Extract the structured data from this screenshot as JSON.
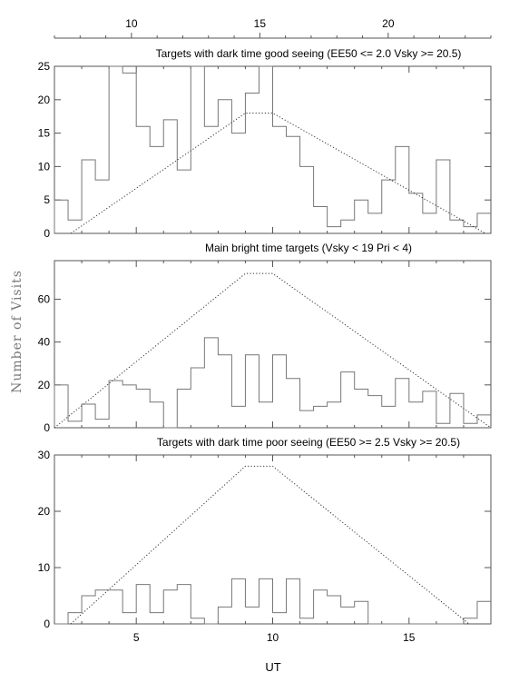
{
  "chart_data": {
    "type": "histogram-panels",
    "ylabel": "Number of Visits",
    "xlabel": "UT",
    "top_axis": {
      "ticks": [
        10,
        15,
        20
      ],
      "range": [
        7,
        24
      ]
    },
    "bottom_axis": {
      "ticks": [
        5,
        10,
        15
      ],
      "range": [
        2,
        18
      ]
    },
    "panels": [
      {
        "title": "Targets with dark time good seeing (EE50 <= 2.0 Vsky >= 20.5)",
        "ylim": [
          0,
          25
        ],
        "yticks": [
          0,
          5,
          10,
          15,
          20,
          25
        ],
        "bin_start": 2.0,
        "bin_width": 0.5,
        "values": [
          5,
          2,
          11,
          8,
          25,
          24,
          16,
          13,
          17,
          9.5,
          25,
          16,
          20,
          15,
          21,
          25,
          16,
          14.5,
          10,
          4,
          1,
          2,
          5,
          3,
          8,
          13,
          6,
          3,
          11,
          2,
          1,
          3
        ],
        "model_line": {
          "x": [
            2.6,
            9.0,
            10.0,
            17.8
          ],
          "y": [
            0,
            18,
            18,
            0
          ]
        }
      },
      {
        "title": "Main bright time targets (Vsky < 19 Pri < 4)",
        "ylim": [
          0,
          78
        ],
        "yticks": [
          0,
          20,
          40,
          60
        ],
        "bin_start": 2.0,
        "bin_width": 0.5,
        "values": [
          20,
          3,
          11,
          4,
          22,
          20,
          18,
          12,
          0,
          18,
          28,
          42,
          34,
          10,
          34,
          12,
          34,
          23,
          8,
          10,
          12,
          26,
          18,
          15,
          10,
          23,
          12,
          17,
          2,
          16,
          2,
          6
        ],
        "model_line": {
          "x": [
            2.0,
            9.0,
            10.0,
            18.0
          ],
          "y": [
            0,
            72,
            72,
            0
          ]
        }
      },
      {
        "title": "Targets with dark time poor seeing (EE50 >= 2.5 Vsky >= 20.5)",
        "ylim": [
          0,
          30
        ],
        "yticks": [
          0,
          10,
          20,
          30
        ],
        "bin_start": 2.0,
        "bin_width": 0.5,
        "values": [
          0,
          2,
          5,
          6,
          6,
          2,
          7,
          2,
          6,
          7,
          1,
          0,
          3,
          8,
          3,
          8,
          2,
          8,
          1,
          6,
          5,
          3,
          4,
          0,
          0,
          0,
          0,
          0,
          0,
          0,
          1,
          4
        ],
        "model_line": {
          "x": [
            2.6,
            9.0,
            10.0,
            17.2
          ],
          "y": [
            0,
            28,
            28,
            0
          ]
        }
      }
    ]
  }
}
